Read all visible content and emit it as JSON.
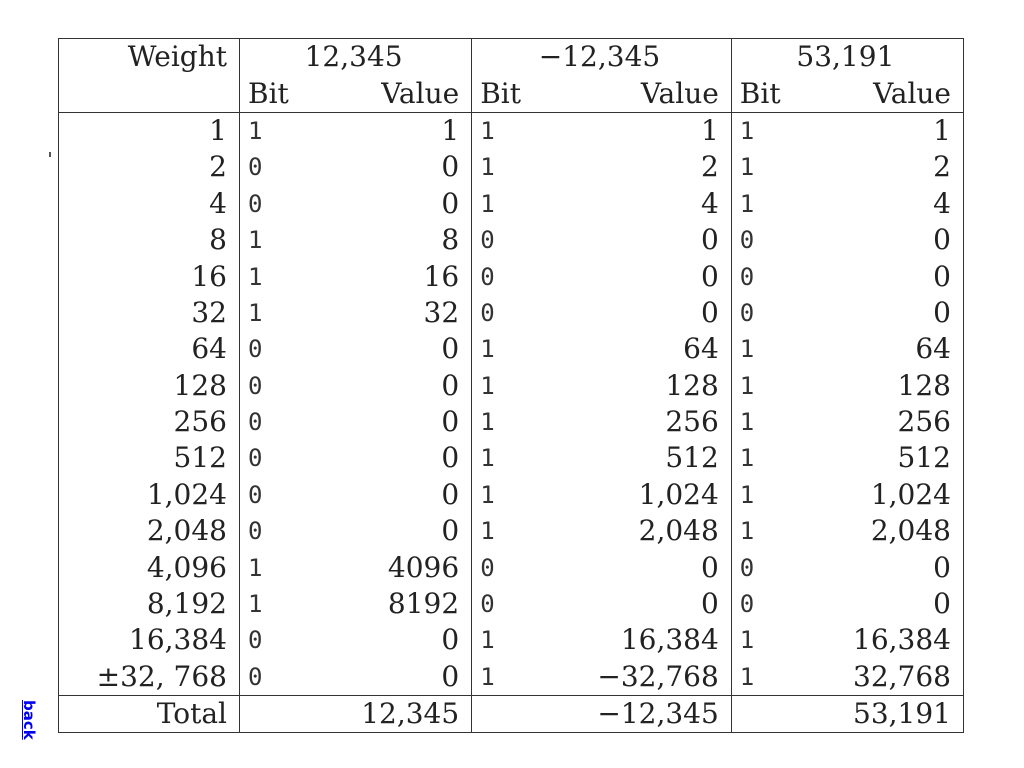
{
  "header": {
    "weight_label": "Weight",
    "groups": [
      "12,345",
      "−12,345",
      "53,191"
    ],
    "bit_label": "Bit",
    "value_label": "Value"
  },
  "rows": [
    {
      "weight": "1",
      "b1": "1",
      "v1": "1",
      "b2": "1",
      "v2": "1",
      "b3": "1",
      "v3": "1"
    },
    {
      "weight": "2",
      "b1": "0",
      "v1": "0",
      "b2": "1",
      "v2": "2",
      "b3": "1",
      "v3": "2"
    },
    {
      "weight": "4",
      "b1": "0",
      "v1": "0",
      "b2": "1",
      "v2": "4",
      "b3": "1",
      "v3": "4"
    },
    {
      "weight": "8",
      "b1": "1",
      "v1": "8",
      "b2": "0",
      "v2": "0",
      "b3": "0",
      "v3": "0"
    },
    {
      "weight": "16",
      "b1": "1",
      "v1": "16",
      "b2": "0",
      "v2": "0",
      "b3": "0",
      "v3": "0"
    },
    {
      "weight": "32",
      "b1": "1",
      "v1": "32",
      "b2": "0",
      "v2": "0",
      "b3": "0",
      "v3": "0"
    },
    {
      "weight": "64",
      "b1": "0",
      "v1": "0",
      "b2": "1",
      "v2": "64",
      "b3": "1",
      "v3": "64"
    },
    {
      "weight": "128",
      "b1": "0",
      "v1": "0",
      "b2": "1",
      "v2": "128",
      "b3": "1",
      "v3": "128"
    },
    {
      "weight": "256",
      "b1": "0",
      "v1": "0",
      "b2": "1",
      "v2": "256",
      "b3": "1",
      "v3": "256"
    },
    {
      "weight": "512",
      "b1": "0",
      "v1": "0",
      "b2": "1",
      "v2": "512",
      "b3": "1",
      "v3": "512"
    },
    {
      "weight": "1,024",
      "b1": "0",
      "v1": "0",
      "b2": "1",
      "v2": "1,024",
      "b3": "1",
      "v3": "1,024"
    },
    {
      "weight": "2,048",
      "b1": "0",
      "v1": "0",
      "b2": "1",
      "v2": "2,048",
      "b3": "1",
      "v3": "2,048"
    },
    {
      "weight": "4,096",
      "b1": "1",
      "v1": "4096",
      "b2": "0",
      "v2": "0",
      "b3": "0",
      "v3": "0"
    },
    {
      "weight": "8,192",
      "b1": "1",
      "v1": "8192",
      "b2": "0",
      "v2": "0",
      "b3": "0",
      "v3": "0"
    },
    {
      "weight": "16,384",
      "b1": "0",
      "v1": "0",
      "b2": "1",
      "v2": "16,384",
      "b3": "1",
      "v3": "16,384"
    },
    {
      "weight": "±32, 768",
      "b1": "0",
      "v1": "0",
      "b2": "1",
      "v2": "−32,768",
      "b3": "1",
      "v3": "32,768"
    }
  ],
  "total": {
    "label": "Total",
    "values": [
      "12,345",
      "−12,345",
      "53,191"
    ]
  },
  "back_link": "back"
}
